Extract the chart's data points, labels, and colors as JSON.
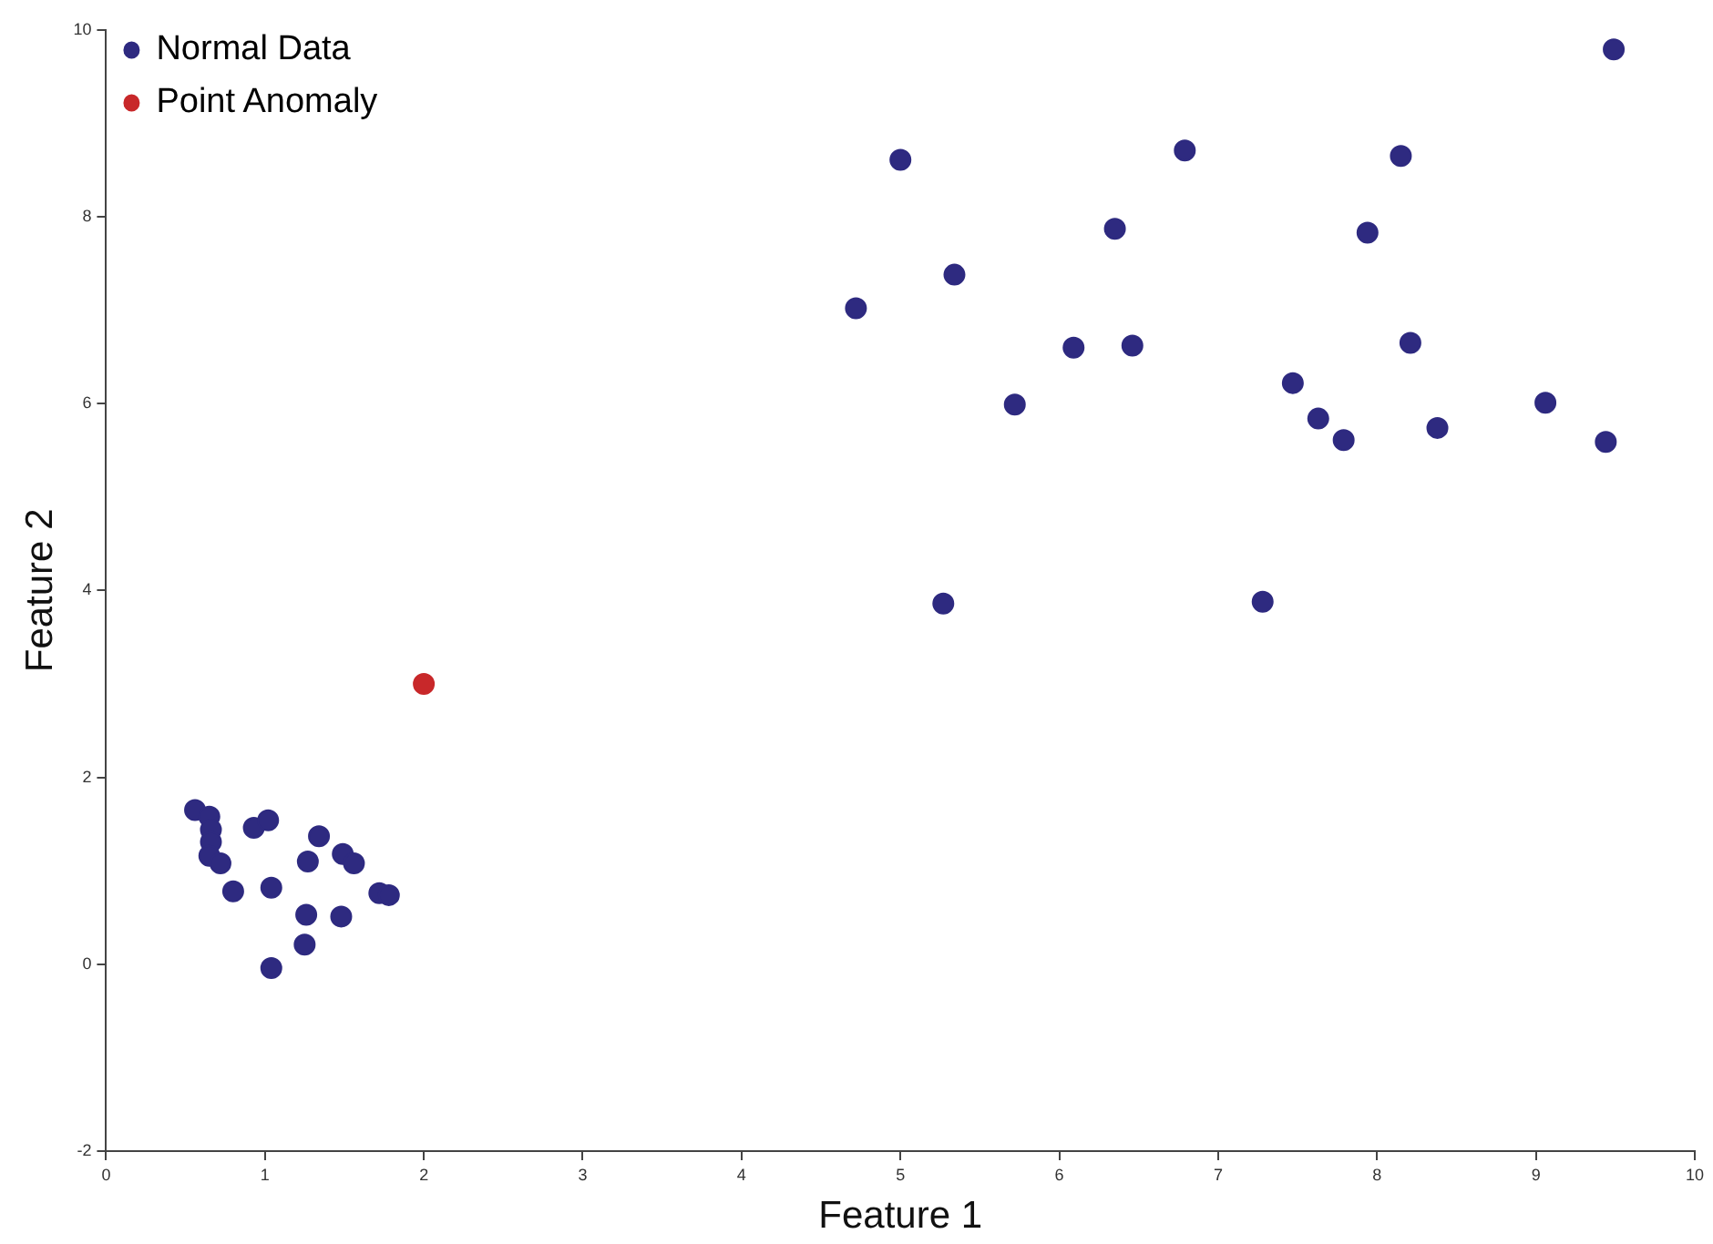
{
  "chart_data": {
    "type": "scatter",
    "xlabel": "Feature 1",
    "ylabel": "Feature 2",
    "xlim": [
      0,
      10
    ],
    "xticks": [
      0,
      1,
      2,
      3,
      4,
      5,
      6,
      7,
      8,
      9,
      10
    ],
    "ylim": [
      -2,
      10
    ],
    "yticks": [
      -2,
      0,
      2,
      4,
      6,
      8,
      10
    ],
    "grid": false,
    "legend": "top left",
    "marker": "circle",
    "series": [
      {
        "name": "Normal Data",
        "color": "#2e2a80",
        "x": [
          0.56,
          0.65,
          0.66,
          0.66,
          0.65,
          0.72,
          0.8,
          0.93,
          1.02,
          1.04,
          1.27,
          1.34,
          1.26,
          1.25,
          1.04,
          1.49,
          1.56,
          1.48,
          1.72,
          1.78,
          4.72,
          5.0,
          5.34,
          5.27,
          5.72,
          6.09,
          6.35,
          6.46,
          6.79,
          7.28,
          7.47,
          7.63,
          7.79,
          7.94,
          8.15,
          8.21,
          8.38,
          9.06,
          9.44,
          9.49
        ],
        "values": [
          1.65,
          1.58,
          1.44,
          1.31,
          1.16,
          1.08,
          0.78,
          1.46,
          1.54,
          0.82,
          1.1,
          1.37,
          0.53,
          0.21,
          -0.04,
          1.18,
          1.08,
          0.51,
          0.76,
          0.74,
          7.02,
          8.61,
          7.38,
          3.86,
          5.99,
          6.6,
          7.87,
          6.62,
          8.71,
          3.88,
          6.22,
          5.84,
          5.61,
          7.83,
          8.65,
          6.65,
          5.74,
          6.01,
          5.59,
          9.79
        ]
      },
      {
        "name": "Point Anomaly",
        "color": "#c8282a",
        "x": [
          2.0
        ],
        "values": [
          3.0
        ]
      }
    ]
  }
}
